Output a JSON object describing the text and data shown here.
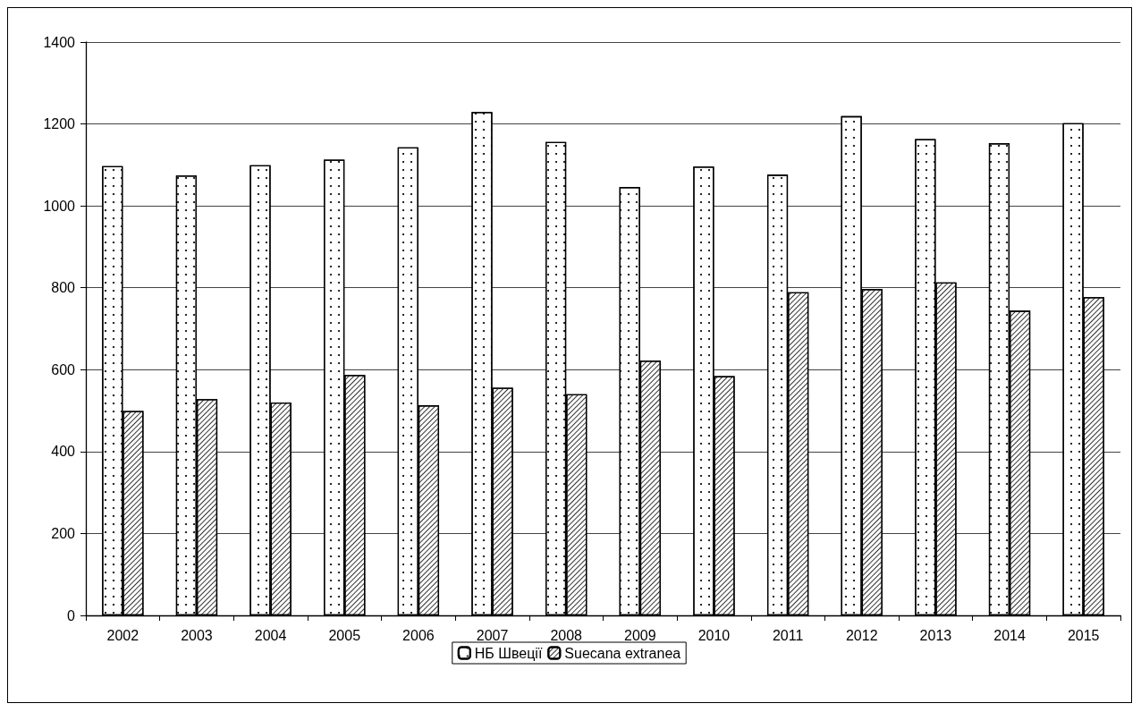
{
  "chart_data": {
    "type": "bar",
    "categories": [
      "2002",
      "2003",
      "2004",
      "2005",
      "2006",
      "2007",
      "2008",
      "2009",
      "2010",
      "2011",
      "2012",
      "2013",
      "2014",
      "2015"
    ],
    "series": [
      {
        "name": "НБ Швеції",
        "color": "#ffffff",
        "values": [
          1097,
          1074,
          1099,
          1113,
          1143,
          1229,
          1156,
          1046,
          1096,
          1076,
          1219,
          1163,
          1153,
          1202
        ]
      },
      {
        "name": "Suecana extranea",
        "color": "#ffffff",
        "values": [
          499,
          528,
          520,
          587,
          513,
          556,
          540,
          622,
          584,
          789,
          797,
          813,
          744,
          777
        ]
      }
    ],
    "ylim": [
      0,
      1400
    ],
    "yticks": [
      0,
      200,
      400,
      600,
      800,
      1000,
      1200,
      1400
    ],
    "grid": "y",
    "legend": "bottom"
  }
}
